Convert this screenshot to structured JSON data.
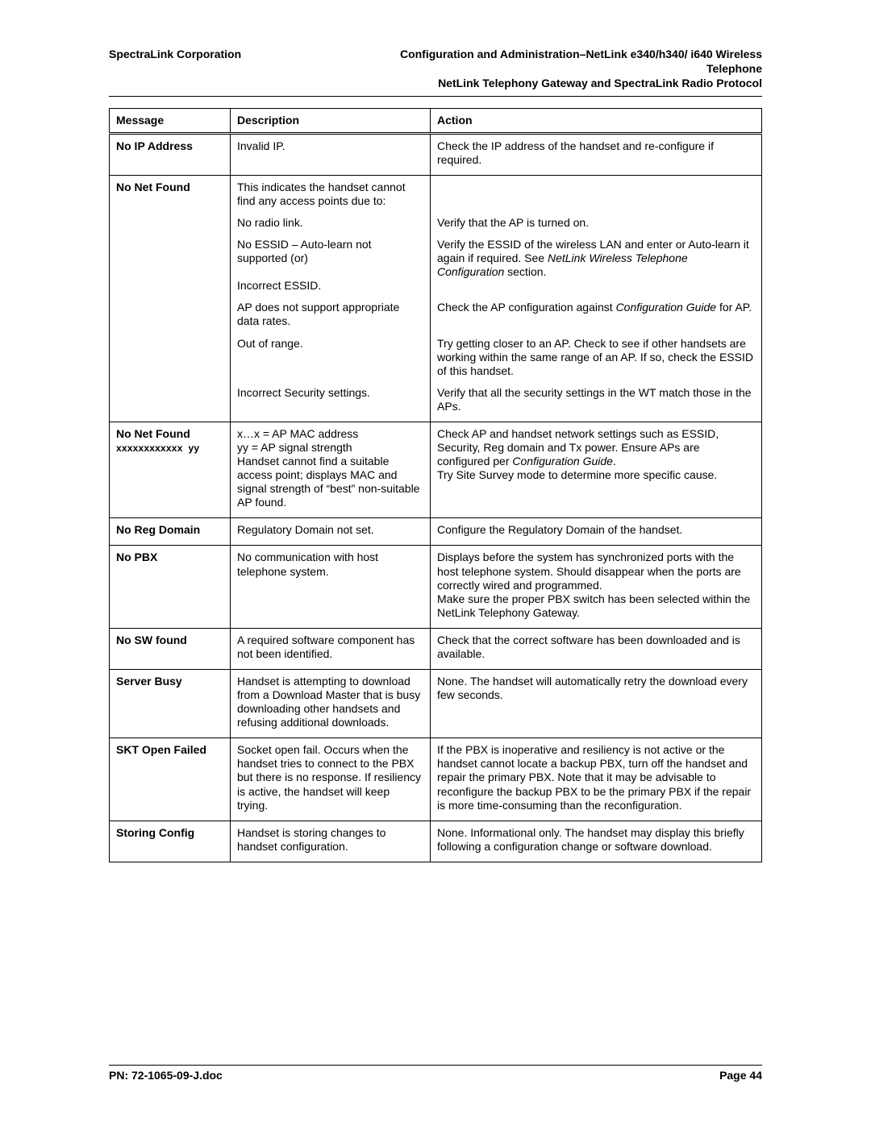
{
  "header": {
    "left": "SpectraLink Corporation",
    "right_line1": "Configuration and Administration–NetLink e340/h340/ i640 Wireless Telephone",
    "right_line2": "NetLink Telephony Gateway and SpectraLink Radio Protocol"
  },
  "table": {
    "head": {
      "c1": "Message",
      "c2": "Description",
      "c3": "Action"
    },
    "rows": [
      {
        "type": "group-top",
        "msg": "No IP Address",
        "desc": "Invalid IP.",
        "act": "Check the IP address of the handset and re-configure if required."
      },
      {
        "type": "group-top",
        "msg": "No Net Found",
        "desc": "This indicates the handset cannot find any access points due to:",
        "act": ""
      },
      {
        "type": "sub",
        "msg": "",
        "desc": "No radio link.",
        "act": "Verify that the AP is turned on."
      },
      {
        "type": "sub",
        "msg": "",
        "desc_html": "No ESSID – Auto-learn not supported (or)<br><br>Incorrect ESSID.",
        "act_html": "Verify the ESSID of the wireless LAN and enter or Auto-learn it again if required. See <em class=\"book\">NetLink Wireless Telephone Configuration</em> section."
      },
      {
        "type": "sub",
        "msg": "",
        "desc": "AP does not support appropriate data rates.",
        "act_html": "Check the AP configuration against <em class=\"book\">Configuration Guide</em> for AP."
      },
      {
        "type": "sub",
        "msg": "",
        "desc": "Out of range.",
        "act": "Try getting closer to an AP. Check to see if other handsets are working within the same range of an AP. If so, check the ESSID of this handset."
      },
      {
        "type": "sub",
        "msg": "",
        "desc": "Incorrect Security settings.",
        "act": "Verify that all the security settings in the WT match those in the APs."
      },
      {
        "type": "group-top",
        "msg_html": "No Net Found<br><span class=\"macline\">xxxxxxxxxxxx&nbsp;&nbsp;yy</span>",
        "desc": "x…x = AP MAC address\nyy = AP signal strength\nHandset cannot find a suitable access point; displays MAC and signal strength of “best” non-suitable AP found.",
        "act_html": "Check AP and handset network settings such as ESSID, Security, Reg domain and Tx power. Ensure APs are configured per <em class=\"book\">Configuration Guide</em>.<br>Try Site Survey mode to determine more specific cause."
      },
      {
        "type": "group-top",
        "msg": "No Reg Domain",
        "desc": "Regulatory Domain not set.",
        "act": "Configure the Regulatory Domain of the handset."
      },
      {
        "type": "group-top",
        "msg": "No PBX",
        "desc": "No communication with host telephone system.",
        "act": "Displays before the system has synchronized ports with the host telephone system. Should disappear when the ports are correctly wired and programmed.\nMake sure the proper PBX switch has been selected within the NetLink Telephony Gateway."
      },
      {
        "type": "group-top",
        "msg": "No SW found",
        "desc": "A required software component has not been identified.",
        "act": "Check that the correct software has been downloaded and is available."
      },
      {
        "type": "group-top",
        "msg": "Server Busy",
        "desc": "Handset is attempting to download from a Download Master that is busy downloading other handsets and refusing additional downloads.",
        "act": "None. The handset will automatically retry the download every few seconds."
      },
      {
        "type": "group-top",
        "msg": "SKT Open Failed",
        "desc": "Socket open fail. Occurs when the handset tries to connect to the PBX but there is no response. If resiliency is active, the handset will keep trying.",
        "act": "If the PBX is inoperative and resiliency is not active or the handset cannot locate a backup PBX, turn off the handset and repair the primary PBX. Note that it may be advisable to reconfigure the backup PBX to be the primary PBX if the repair is more time-consuming than the reconfiguration."
      },
      {
        "type": "group-top last",
        "msg": "Storing Config",
        "desc": "Handset is storing changes to handset configuration.",
        "act": "None. Informational only. The handset may display this briefly following a configuration change or software download."
      }
    ]
  },
  "footer": {
    "left": "PN: 72-1065-09-J.doc",
    "right": "Page 44"
  }
}
